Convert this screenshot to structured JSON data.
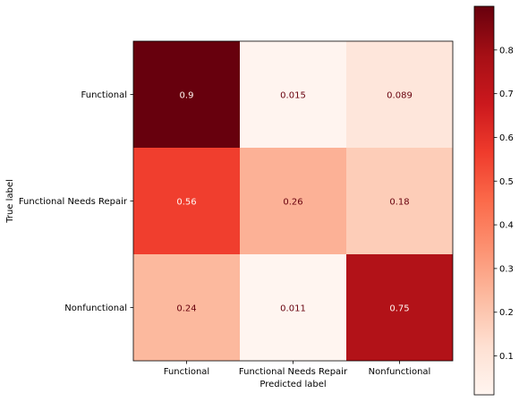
{
  "chart_data": {
    "type": "heatmap",
    "title": "",
    "xlabel": "Predicted label",
    "ylabel": "True label",
    "x_categories": [
      "Functional",
      "Functional Needs Repair",
      "Nonfunctional"
    ],
    "y_categories": [
      "Functional",
      "Functional Needs Repair",
      "Nonfunctional"
    ],
    "values": [
      [
        0.9,
        0.015,
        0.089
      ],
      [
        0.56,
        0.26,
        0.18
      ],
      [
        0.24,
        0.011,
        0.75
      ]
    ],
    "cell_labels": [
      [
        "0.9",
        "0.015",
        "0.089"
      ],
      [
        "0.56",
        "0.26",
        "0.18"
      ],
      [
        "0.24",
        "0.011",
        "0.75"
      ]
    ],
    "colormap": "Reds",
    "colorbar": {
      "vmin": 0.011,
      "vmax": 0.9,
      "ticks": [
        0.1,
        0.2,
        0.3,
        0.4,
        0.5,
        0.6,
        0.7,
        0.8
      ],
      "tick_labels": [
        "0.1",
        "0.2",
        "0.3",
        "0.4",
        "0.5",
        "0.6",
        "0.7",
        "0.8"
      ]
    },
    "grid": false
  }
}
